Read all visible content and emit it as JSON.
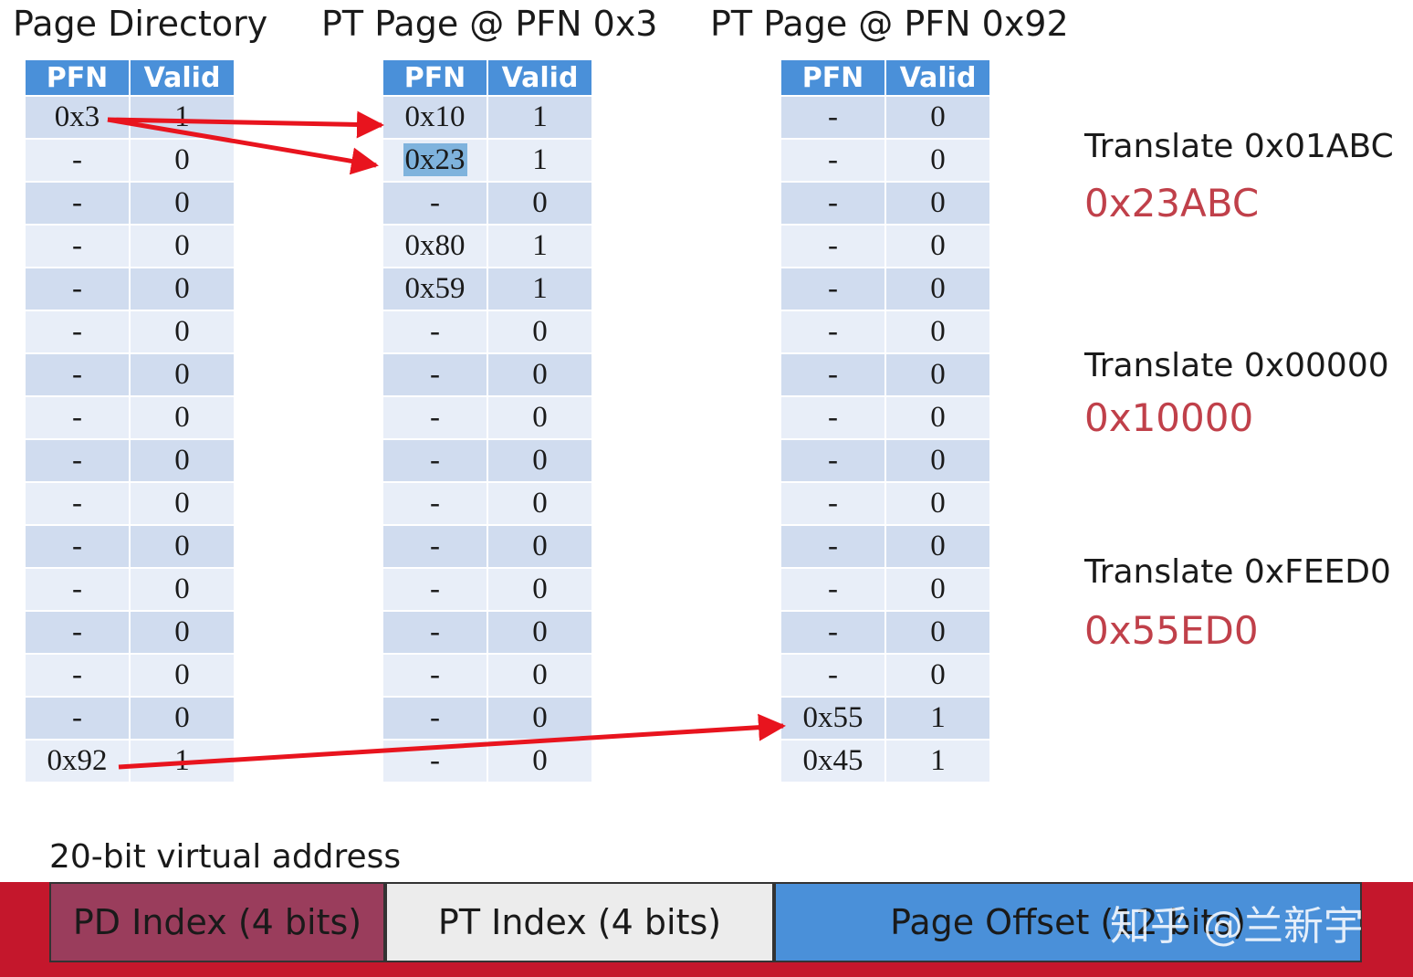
{
  "titles": {
    "pd": "Page Directory",
    "pt1": "PT Page @ PFN 0x3",
    "pt2": "PT Page @ PFN 0x92"
  },
  "headers": {
    "pfn": "PFN",
    "valid": "Valid"
  },
  "tables": {
    "pd": [
      [
        "0x3",
        "1"
      ],
      [
        "-",
        "0"
      ],
      [
        "-",
        "0"
      ],
      [
        "-",
        "0"
      ],
      [
        "-",
        "0"
      ],
      [
        "-",
        "0"
      ],
      [
        "-",
        "0"
      ],
      [
        "-",
        "0"
      ],
      [
        "-",
        "0"
      ],
      [
        "-",
        "0"
      ],
      [
        "-",
        "0"
      ],
      [
        "-",
        "0"
      ],
      [
        "-",
        "0"
      ],
      [
        "-",
        "0"
      ],
      [
        "-",
        "0"
      ],
      [
        "0x92",
        "1"
      ]
    ],
    "pt1": [
      [
        "0x10",
        "1"
      ],
      [
        "0x23",
        "1"
      ],
      [
        "-",
        "0"
      ],
      [
        "0x80",
        "1"
      ],
      [
        "0x59",
        "1"
      ],
      [
        "-",
        "0"
      ],
      [
        "-",
        "0"
      ],
      [
        "-",
        "0"
      ],
      [
        "-",
        "0"
      ],
      [
        "-",
        "0"
      ],
      [
        "-",
        "0"
      ],
      [
        "-",
        "0"
      ],
      [
        "-",
        "0"
      ],
      [
        "-",
        "0"
      ],
      [
        "-",
        "0"
      ],
      [
        "-",
        "0"
      ]
    ],
    "pt2": [
      [
        "-",
        "0"
      ],
      [
        "-",
        "0"
      ],
      [
        "-",
        "0"
      ],
      [
        "-",
        "0"
      ],
      [
        "-",
        "0"
      ],
      [
        "-",
        "0"
      ],
      [
        "-",
        "0"
      ],
      [
        "-",
        "0"
      ],
      [
        "-",
        "0"
      ],
      [
        "-",
        "0"
      ],
      [
        "-",
        "0"
      ],
      [
        "-",
        "0"
      ],
      [
        "-",
        "0"
      ],
      [
        "-",
        "0"
      ],
      [
        "0x55",
        "1"
      ],
      [
        "0x45",
        "1"
      ]
    ]
  },
  "translations": [
    {
      "question": "Translate 0x01ABC",
      "answer": "0x23ABC"
    },
    {
      "question": "Translate 0x00000",
      "answer": "0x10000"
    },
    {
      "question": "Translate 0xFEED0",
      "answer": "0x55ED0"
    }
  ],
  "address": {
    "label": "20-bit virtual address",
    "fields": [
      "PD Index (4 bits)",
      "PT Index (4 bits)",
      "Page Offset (12 bits)"
    ]
  },
  "watermark": "知乎 @兰新宇",
  "colors": {
    "header": "#4a90d9",
    "row_dark": "#d0dcef",
    "row_light": "#e8eef8",
    "answer": "#c0404a",
    "arrow": "#e8141e",
    "pd_index": "#9a3d5c",
    "pt_index": "#ececec",
    "page_offset": "#4a90d9",
    "band": "#c4172c"
  }
}
